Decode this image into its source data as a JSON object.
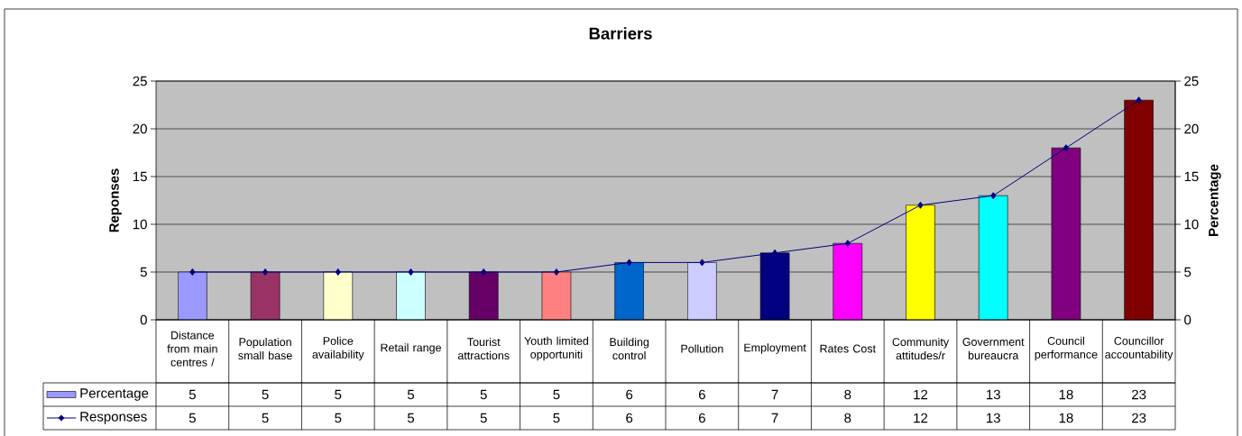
{
  "chart_data": {
    "type": "bar",
    "title": "Barriers",
    "ylabel": "Reponses",
    "y2label": "Percentage",
    "categories": [
      "Distance from main centres /",
      "Population small base",
      "Police availability",
      "Retail range",
      "Tourist attractions",
      "Youth limited opportuniti",
      "Building control",
      "Pollution",
      "Employment",
      "Rates Cost",
      "Community attitudes/r",
      "Government bureaucra",
      "Council performance",
      "Councillor accountability"
    ],
    "series": [
      {
        "name": "Percentage",
        "axis": "y2",
        "color": "#9999ff",
        "colors": [
          "#9999ff",
          "#993366",
          "#ffffcc",
          "#ccffff",
          "#660066",
          "#ff8080",
          "#0066cc",
          "#ccccff",
          "#000080",
          "#ff00ff",
          "#ffff00",
          "#00ffff",
          "#800080",
          "#800000"
        ],
        "values": [
          5,
          5,
          5,
          5,
          5,
          5,
          6,
          6,
          7,
          8,
          12,
          13,
          18,
          23
        ]
      },
      {
        "name": "Responses",
        "type": "line",
        "axis": "y",
        "color": "#000080",
        "values": [
          5,
          5,
          5,
          5,
          5,
          5,
          6,
          6,
          7,
          8,
          12,
          13,
          18,
          23
        ]
      }
    ],
    "ylim": [
      0,
      25
    ],
    "yticks": [
      0,
      5,
      10,
      15,
      20,
      25
    ],
    "y2lim": [
      0,
      25
    ],
    "y2ticks": [
      0,
      5,
      10,
      15,
      20,
      25
    ],
    "grid": "y",
    "legend": "bottom",
    "data_labels": true,
    "marker": "diamond"
  }
}
